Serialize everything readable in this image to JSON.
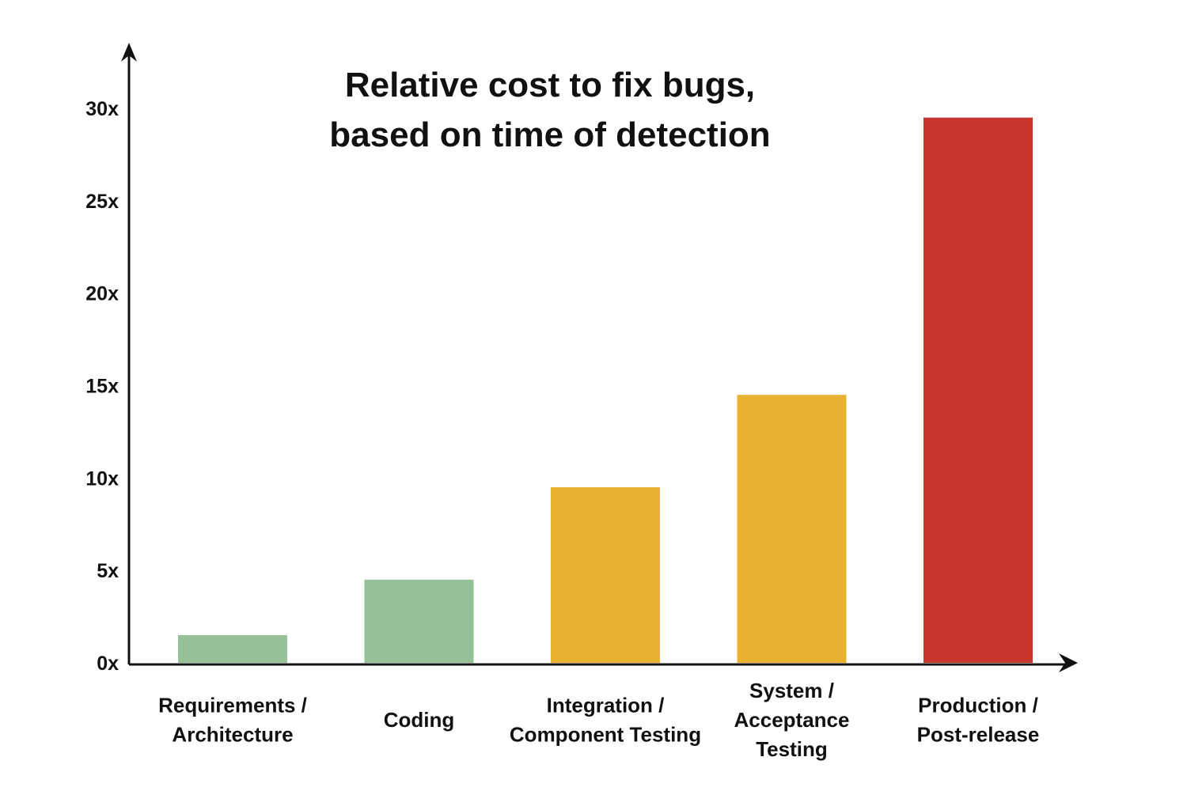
{
  "chart_data": {
    "type": "bar",
    "title": [
      "Relative cost to fix bugs,",
      "based on time of detection"
    ],
    "xlabel": "",
    "ylabel": "",
    "ylim": [
      0,
      30
    ],
    "yticks": [
      0,
      5,
      10,
      15,
      20,
      25,
      30
    ],
    "ytick_labels": [
      "0x",
      "5x",
      "10x",
      "15x",
      "20x",
      "25x",
      "30x"
    ],
    "grid": false,
    "legend": "none",
    "categories": [
      [
        "Requirements /",
        "Architecture"
      ],
      [
        "Coding"
      ],
      [
        "Integration /",
        "Component Testing"
      ],
      [
        "System /",
        "Acceptance",
        "Testing"
      ],
      [
        "Production /",
        "Post-release"
      ]
    ],
    "values": [
      1.5,
      4.5,
      9.5,
      14.5,
      29.5
    ],
    "colors": [
      "#96c198",
      "#96c198",
      "#e8b130",
      "#e8b130",
      "#c8352c"
    ]
  }
}
